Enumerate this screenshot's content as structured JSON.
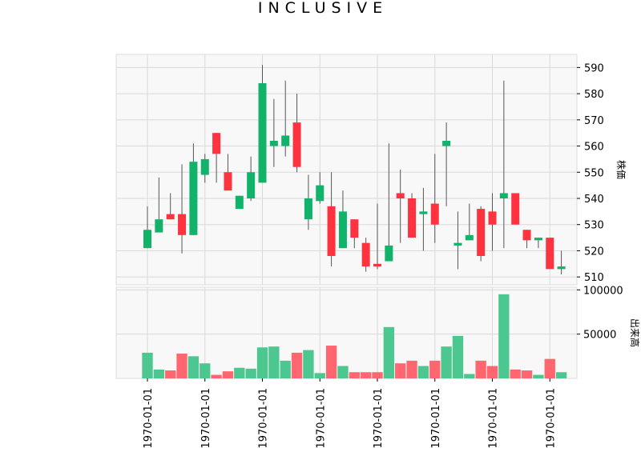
{
  "chart_data": {
    "type": "candlestick",
    "title": "INCLUSIVE",
    "price_axis_label": "株価",
    "volume_axis_label": "出来高",
    "price_ylim": [
      507,
      595
    ],
    "price_ticks": [
      510,
      520,
      530,
      540,
      550,
      560,
      570,
      580,
      590
    ],
    "volume_ylim": [
      0,
      103000
    ],
    "volume_ticks": [
      50000,
      100000
    ],
    "x_tick_labels": [
      "1970-01-01",
      "1970-01-01",
      "1970-01-01",
      "1970-01-01",
      "1970-01-01",
      "1970-01-01",
      "1970-01-01",
      "1970-01-01"
    ],
    "x_tick_indices": [
      0,
      5,
      10,
      15,
      20,
      25,
      30,
      35
    ],
    "up_color": "#11b36b",
    "down_color": "#ff3340",
    "volume_up_color": "#4dc790",
    "volume_down_color": "#ff6670",
    "grid": true,
    "candles": [
      {
        "open": 521,
        "close": 528,
        "high": 537,
        "low": 521,
        "volume": 29000
      },
      {
        "open": 527,
        "close": 532,
        "high": 548,
        "low": 527,
        "volume": 10000
      },
      {
        "open": 534,
        "close": 532,
        "high": 542,
        "low": 532,
        "volume": 9000
      },
      {
        "open": 534,
        "close": 526,
        "high": 553,
        "low": 519,
        "volume": 28000
      },
      {
        "open": 526,
        "close": 554,
        "high": 561,
        "low": 526,
        "volume": 25000
      },
      {
        "open": 549,
        "close": 555,
        "high": 557,
        "low": 546,
        "volume": 17000
      },
      {
        "open": 565,
        "close": 557,
        "high": 565,
        "low": 546,
        "volume": 4000
      },
      {
        "open": 550,
        "close": 543,
        "high": 557,
        "low": 543,
        "volume": 8000
      },
      {
        "open": 536,
        "close": 541,
        "high": 541,
        "low": 536,
        "volume": 12000
      },
      {
        "open": 540,
        "close": 550,
        "high": 556,
        "low": 539,
        "volume": 11000
      },
      {
        "open": 546,
        "close": 584,
        "high": 591,
        "low": 546,
        "volume": 35000
      },
      {
        "open": 560,
        "close": 562,
        "high": 578,
        "low": 552,
        "volume": 36000
      },
      {
        "open": 560,
        "close": 564,
        "high": 585,
        "low": 556,
        "volume": 20000
      },
      {
        "open": 569,
        "close": 552,
        "high": 580,
        "low": 550,
        "volume": 29000
      },
      {
        "open": 532,
        "close": 540,
        "high": 549,
        "low": 528,
        "volume": 32000
      },
      {
        "open": 539,
        "close": 545,
        "high": 550,
        "low": 538,
        "volume": 6000
      },
      {
        "open": 537,
        "close": 518,
        "high": 550,
        "low": 514,
        "volume": 37000
      },
      {
        "open": 521,
        "close": 535,
        "high": 543,
        "low": 521,
        "volume": 14000
      },
      {
        "open": 532,
        "close": 525,
        "high": 532,
        "low": 521,
        "volume": 7000
      },
      {
        "open": 523,
        "close": 514,
        "high": 525,
        "low": 512,
        "volume": 7000
      },
      {
        "open": 515,
        "close": 514,
        "high": 538,
        "low": 513,
        "volume": 7000
      },
      {
        "open": 516,
        "close": 522,
        "high": 561,
        "low": 516,
        "volume": 58000
      },
      {
        "open": 542,
        "close": 540,
        "high": 551,
        "low": 523,
        "volume": 17000
      },
      {
        "open": 540,
        "close": 525,
        "high": 542,
        "low": 525,
        "volume": 20000
      },
      {
        "open": 534,
        "close": 535,
        "high": 544,
        "low": 520,
        "volume": 14000
      },
      {
        "open": 538,
        "close": 530,
        "high": 557,
        "low": 523,
        "volume": 20000
      },
      {
        "open": 560,
        "close": 562,
        "high": 569,
        "low": 537,
        "volume": 36000
      },
      {
        "open": 522,
        "close": 523,
        "high": 535,
        "low": 513,
        "volume": 48000
      },
      {
        "open": 524,
        "close": 526,
        "high": 538,
        "low": 524,
        "volume": 5000
      },
      {
        "open": 536,
        "close": 518,
        "high": 537,
        "low": 516,
        "volume": 20000
      },
      {
        "open": 535,
        "close": 530,
        "high": 542,
        "low": 520,
        "volume": 14000
      },
      {
        "open": 540,
        "close": 542,
        "high": 585,
        "low": 521,
        "volume": 95000
      },
      {
        "open": 542,
        "close": 530,
        "high": 542,
        "low": 530,
        "volume": 10000
      },
      {
        "open": 528,
        "close": 524,
        "high": 528,
        "low": 521,
        "volume": 9000
      },
      {
        "open": 524,
        "close": 525,
        "high": 525,
        "low": 521,
        "volume": 4000
      },
      {
        "open": 525,
        "close": 513,
        "high": 525,
        "low": 513,
        "volume": 22000
      },
      {
        "open": 513,
        "close": 514,
        "high": 520,
        "low": 511,
        "volume": 7000
      }
    ]
  }
}
